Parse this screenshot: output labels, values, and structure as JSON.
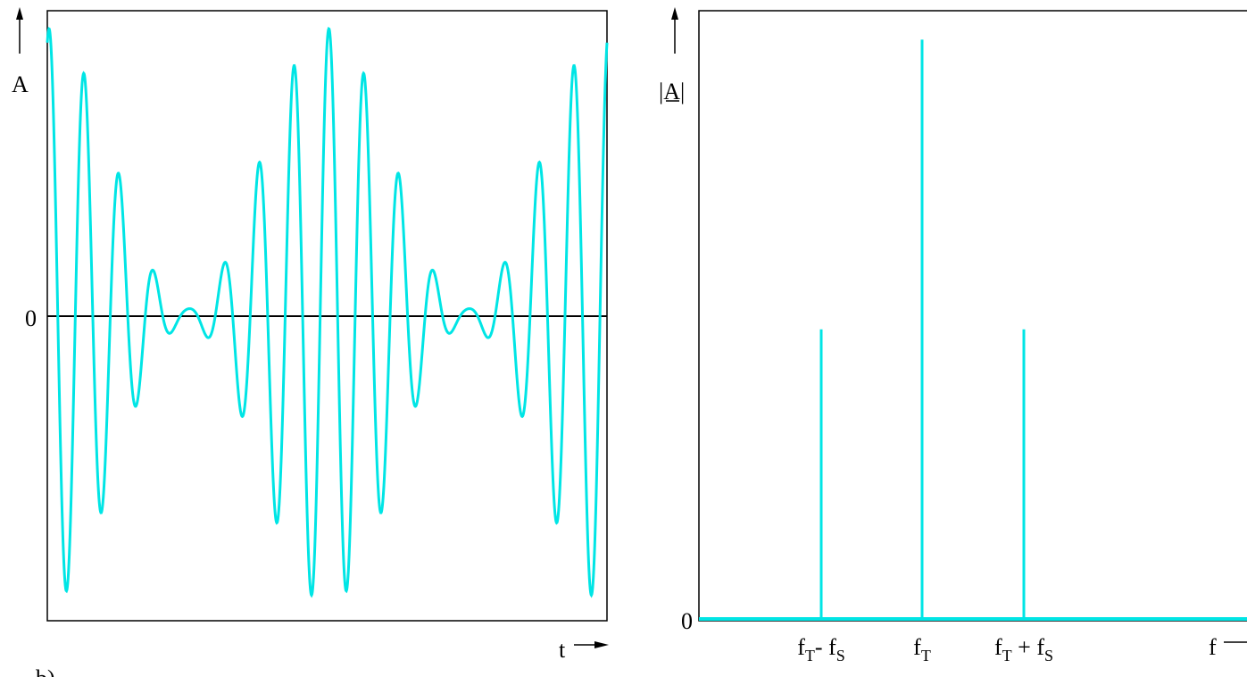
{
  "colors": {
    "signal": "#00e5e5",
    "axis": "#000000",
    "background": "#ffffff"
  },
  "chart_data": [
    {
      "type": "line",
      "title": "",
      "xlabel": "t",
      "ylabel": "A",
      "y_tick_labels": [
        "0"
      ],
      "grid": false,
      "legend": "none",
      "signal_model": {
        "description": "amplitude-modulated carrier",
        "carrier_cycles": 16,
        "modulation_cycles": 2,
        "modulation_depth": 0.95,
        "carrier_phase_start": 0.2
      },
      "bottom_label_fragment": "b)"
    },
    {
      "type": "bar",
      "title": "",
      "xlabel": "f",
      "ylabel": "|A|",
      "y_tick_labels": [
        "0"
      ],
      "categories": [
        "fT- fS",
        "fT",
        "fT + fS"
      ],
      "category_labels": [
        {
          "main": "f",
          "sub1": "T",
          "op": "- f",
          "sub2": "S"
        },
        {
          "main": "f",
          "sub1": "T",
          "op": "",
          "sub2": ""
        },
        {
          "main": "f",
          "sub1": "T",
          "op": " + f",
          "sub2": "S"
        }
      ],
      "values": [
        0.5,
        1.0,
        0.5
      ],
      "ylim": [
        0,
        1.05
      ],
      "grid": false,
      "legend": "none"
    }
  ]
}
